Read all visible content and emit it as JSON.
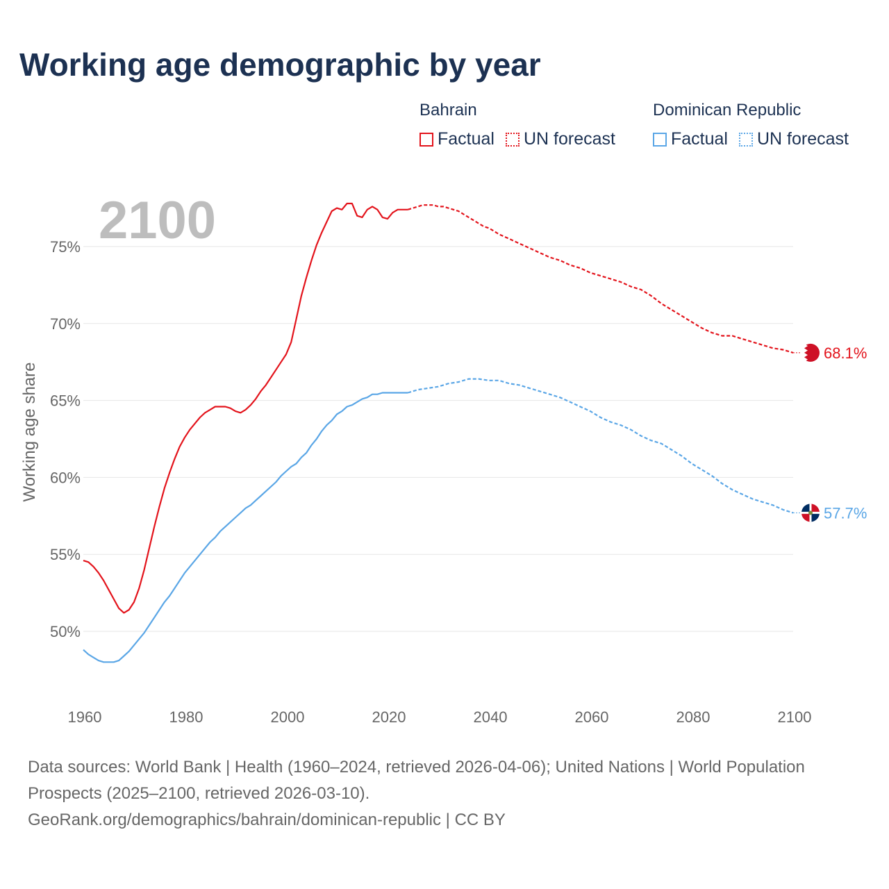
{
  "title": "Working age demographic by year",
  "year_label": "2100",
  "legend": {
    "groups": [
      {
        "name": "Bahrain",
        "color": "#e3131b",
        "items": [
          {
            "label": "Factual",
            "style": "solid"
          },
          {
            "label": "UN forecast",
            "style": "dotted"
          }
        ]
      },
      {
        "name": "Dominican Republic",
        "color": "#5aa6e6",
        "items": [
          {
            "label": "Factual",
            "style": "solid"
          },
          {
            "label": "UN forecast",
            "style": "dotted"
          }
        ]
      }
    ]
  },
  "footer": {
    "sources": "Data sources: World Bank | Health (1960–2024, retrieved 2026-04-06); United Nations | World Population Prospects (2025–2100, retrieved 2026-03-10).",
    "credit": "GeoRank.org/demographics/bahrain/dominican-republic | CC BY"
  },
  "chart_data": {
    "type": "line",
    "title": "Working age demographic by year",
    "xlabel": "",
    "ylabel": "Working age share",
    "xlim": [
      1960,
      2100
    ],
    "ylim": [
      46,
      79
    ],
    "x_ticks": [
      1960,
      1980,
      2000,
      2020,
      2040,
      2060,
      2080,
      2100
    ],
    "x_tick_labels": [
      "1960",
      "1980",
      "2000",
      "2020",
      "2040",
      "2060",
      "2080",
      "2100"
    ],
    "y_ticks": [
      50,
      55,
      60,
      65,
      70,
      75
    ],
    "y_tick_labels": [
      "50%",
      "55%",
      "60%",
      "65%",
      "70%",
      "75%"
    ],
    "grid": true,
    "forecast_start": 2024,
    "series": [
      {
        "name": "Bahrain",
        "color": "#e3131b",
        "end_label": "68.1%",
        "end_icon": "bahrain-flag-icon",
        "points": [
          [
            1960,
            54.6
          ],
          [
            1961,
            54.5
          ],
          [
            1962,
            54.2
          ],
          [
            1963,
            53.8
          ],
          [
            1964,
            53.3
          ],
          [
            1965,
            52.7
          ],
          [
            1966,
            52.1
          ],
          [
            1967,
            51.5
          ],
          [
            1968,
            51.2
          ],
          [
            1969,
            51.4
          ],
          [
            1970,
            51.9
          ],
          [
            1971,
            52.8
          ],
          [
            1972,
            54.0
          ],
          [
            1973,
            55.4
          ],
          [
            1974,
            56.8
          ],
          [
            1975,
            58.1
          ],
          [
            1976,
            59.3
          ],
          [
            1977,
            60.3
          ],
          [
            1978,
            61.2
          ],
          [
            1979,
            62.0
          ],
          [
            1980,
            62.6
          ],
          [
            1981,
            63.1
          ],
          [
            1982,
            63.5
          ],
          [
            1983,
            63.9
          ],
          [
            1984,
            64.2
          ],
          [
            1985,
            64.4
          ],
          [
            1986,
            64.6
          ],
          [
            1987,
            64.6
          ],
          [
            1988,
            64.6
          ],
          [
            1989,
            64.5
          ],
          [
            1990,
            64.3
          ],
          [
            1991,
            64.2
          ],
          [
            1992,
            64.4
          ],
          [
            1993,
            64.7
          ],
          [
            1994,
            65.1
          ],
          [
            1995,
            65.6
          ],
          [
            1996,
            66.0
          ],
          [
            1997,
            66.5
          ],
          [
            1998,
            67.0
          ],
          [
            1999,
            67.5
          ],
          [
            2000,
            68.0
          ],
          [
            2001,
            68.8
          ],
          [
            2002,
            70.3
          ],
          [
            2003,
            71.8
          ],
          [
            2004,
            73.0
          ],
          [
            2005,
            74.1
          ],
          [
            2006,
            75.1
          ],
          [
            2007,
            75.9
          ],
          [
            2008,
            76.6
          ],
          [
            2009,
            77.3
          ],
          [
            2010,
            77.5
          ],
          [
            2011,
            77.4
          ],
          [
            2012,
            77.8
          ],
          [
            2013,
            77.8
          ],
          [
            2014,
            77.0
          ],
          [
            2015,
            76.9
          ],
          [
            2016,
            77.4
          ],
          [
            2017,
            77.6
          ],
          [
            2018,
            77.4
          ],
          [
            2019,
            76.9
          ],
          [
            2020,
            76.8
          ],
          [
            2021,
            77.2
          ],
          [
            2022,
            77.4
          ],
          [
            2023,
            77.4
          ],
          [
            2024,
            77.4
          ]
        ],
        "forecast_points": [
          [
            2024,
            77.4
          ],
          [
            2025,
            77.5
          ],
          [
            2026,
            77.6
          ],
          [
            2027,
            77.7
          ],
          [
            2028,
            77.7
          ],
          [
            2029,
            77.7
          ],
          [
            2030,
            77.6
          ],
          [
            2031,
            77.6
          ],
          [
            2032,
            77.5
          ],
          [
            2033,
            77.4
          ],
          [
            2034,
            77.3
          ],
          [
            2035,
            77.1
          ],
          [
            2036,
            76.9
          ],
          [
            2037,
            76.7
          ],
          [
            2038,
            76.5
          ],
          [
            2039,
            76.3
          ],
          [
            2040,
            76.2
          ],
          [
            2042,
            75.8
          ],
          [
            2044,
            75.5
          ],
          [
            2046,
            75.2
          ],
          [
            2048,
            74.9
          ],
          [
            2050,
            74.6
          ],
          [
            2052,
            74.3
          ],
          [
            2054,
            74.1
          ],
          [
            2056,
            73.8
          ],
          [
            2058,
            73.6
          ],
          [
            2060,
            73.3
          ],
          [
            2062,
            73.1
          ],
          [
            2064,
            72.9
          ],
          [
            2066,
            72.7
          ],
          [
            2068,
            72.4
          ],
          [
            2070,
            72.2
          ],
          [
            2072,
            71.8
          ],
          [
            2074,
            71.3
          ],
          [
            2076,
            70.9
          ],
          [
            2078,
            70.5
          ],
          [
            2080,
            70.1
          ],
          [
            2082,
            69.7
          ],
          [
            2084,
            69.4
          ],
          [
            2086,
            69.2
          ],
          [
            2088,
            69.2
          ],
          [
            2090,
            69.0
          ],
          [
            2092,
            68.8
          ],
          [
            2094,
            68.6
          ],
          [
            2096,
            68.4
          ],
          [
            2098,
            68.3
          ],
          [
            2100,
            68.1
          ]
        ]
      },
      {
        "name": "Dominican Republic",
        "color": "#5aa6e6",
        "end_label": "57.7%",
        "end_icon": "dominican-republic-flag-icon",
        "points": [
          [
            1960,
            48.8
          ],
          [
            1961,
            48.5
          ],
          [
            1962,
            48.3
          ],
          [
            1963,
            48.1
          ],
          [
            1964,
            48.0
          ],
          [
            1965,
            48.0
          ],
          [
            1966,
            48.0
          ],
          [
            1967,
            48.1
          ],
          [
            1968,
            48.4
          ],
          [
            1969,
            48.7
          ],
          [
            1970,
            49.1
          ],
          [
            1971,
            49.5
          ],
          [
            1972,
            49.9
          ],
          [
            1973,
            50.4
          ],
          [
            1974,
            50.9
          ],
          [
            1975,
            51.4
          ],
          [
            1976,
            51.9
          ],
          [
            1977,
            52.3
          ],
          [
            1978,
            52.8
          ],
          [
            1979,
            53.3
          ],
          [
            1980,
            53.8
          ],
          [
            1981,
            54.2
          ],
          [
            1982,
            54.6
          ],
          [
            1983,
            55.0
          ],
          [
            1984,
            55.4
          ],
          [
            1985,
            55.8
          ],
          [
            1986,
            56.1
          ],
          [
            1987,
            56.5
          ],
          [
            1988,
            56.8
          ],
          [
            1989,
            57.1
          ],
          [
            1990,
            57.4
          ],
          [
            1991,
            57.7
          ],
          [
            1992,
            58.0
          ],
          [
            1993,
            58.2
          ],
          [
            1994,
            58.5
          ],
          [
            1995,
            58.8
          ],
          [
            1996,
            59.1
          ],
          [
            1997,
            59.4
          ],
          [
            1998,
            59.7
          ],
          [
            1999,
            60.1
          ],
          [
            2000,
            60.4
          ],
          [
            2001,
            60.7
          ],
          [
            2002,
            60.9
          ],
          [
            2003,
            61.3
          ],
          [
            2004,
            61.6
          ],
          [
            2005,
            62.1
          ],
          [
            2006,
            62.5
          ],
          [
            2007,
            63.0
          ],
          [
            2008,
            63.4
          ],
          [
            2009,
            63.7
          ],
          [
            2010,
            64.1
          ],
          [
            2011,
            64.3
          ],
          [
            2012,
            64.6
          ],
          [
            2013,
            64.7
          ],
          [
            2014,
            64.9
          ],
          [
            2015,
            65.1
          ],
          [
            2016,
            65.2
          ],
          [
            2017,
            65.4
          ],
          [
            2018,
            65.4
          ],
          [
            2019,
            65.5
          ],
          [
            2020,
            65.5
          ],
          [
            2021,
            65.5
          ],
          [
            2022,
            65.5
          ],
          [
            2023,
            65.5
          ],
          [
            2024,
            65.5
          ]
        ],
        "forecast_points": [
          [
            2024,
            65.5
          ],
          [
            2026,
            65.7
          ],
          [
            2028,
            65.8
          ],
          [
            2030,
            65.9
          ],
          [
            2032,
            66.1
          ],
          [
            2034,
            66.2
          ],
          [
            2036,
            66.4
          ],
          [
            2038,
            66.4
          ],
          [
            2040,
            66.3
          ],
          [
            2042,
            66.3
          ],
          [
            2044,
            66.1
          ],
          [
            2046,
            66.0
          ],
          [
            2048,
            65.8
          ],
          [
            2050,
            65.6
          ],
          [
            2052,
            65.4
          ],
          [
            2054,
            65.2
          ],
          [
            2056,
            64.9
          ],
          [
            2058,
            64.6
          ],
          [
            2060,
            64.3
          ],
          [
            2062,
            63.9
          ],
          [
            2064,
            63.6
          ],
          [
            2066,
            63.4
          ],
          [
            2068,
            63.1
          ],
          [
            2070,
            62.7
          ],
          [
            2072,
            62.4
          ],
          [
            2074,
            62.2
          ],
          [
            2076,
            61.8
          ],
          [
            2078,
            61.4
          ],
          [
            2080,
            60.9
          ],
          [
            2082,
            60.5
          ],
          [
            2084,
            60.1
          ],
          [
            2086,
            59.6
          ],
          [
            2088,
            59.2
          ],
          [
            2090,
            58.9
          ],
          [
            2092,
            58.6
          ],
          [
            2094,
            58.4
          ],
          [
            2096,
            58.2
          ],
          [
            2098,
            57.9
          ],
          [
            2100,
            57.7
          ]
        ]
      }
    ]
  }
}
